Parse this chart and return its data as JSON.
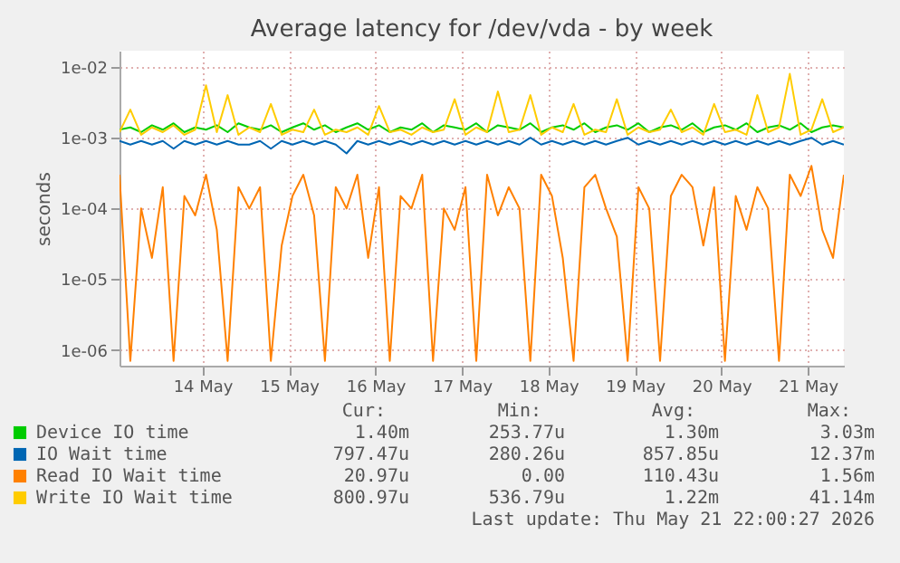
{
  "chart_data": {
    "type": "line",
    "title": "Average latency for /dev/vda - by week",
    "ylabel": "seconds",
    "log": true,
    "grid": true,
    "legend": "bottom left",
    "marker": "none",
    "line_style": "solid",
    "xlim": [
      "2026-05-13T13:00",
      "2026-05-21T22:00"
    ],
    "xticks": [
      {
        "value": "2026-05-14T12:00",
        "label": "14 May"
      },
      {
        "value": "2026-05-15T12:00",
        "label": "15 May"
      },
      {
        "value": "2026-05-16T12:00",
        "label": "16 May"
      },
      {
        "value": "2026-05-17T12:00",
        "label": "17 May"
      },
      {
        "value": "2026-05-18T12:00",
        "label": "18 May"
      },
      {
        "value": "2026-05-19T12:00",
        "label": "19 May"
      },
      {
        "value": "2026-05-20T12:00",
        "label": "20 May"
      },
      {
        "value": "2026-05-21T12:00",
        "label": "21 May"
      }
    ],
    "ylim": [
      6e-07,
      0.017
    ],
    "yticks": [
      {
        "value": 0.01,
        "label": "1e-02"
      },
      {
        "value": 0.001,
        "label": "1e-03"
      },
      {
        "value": 0.0001,
        "label": "1e-04"
      },
      {
        "value": 1e-05,
        "label": "1e-05"
      },
      {
        "value": 1e-06,
        "label": "1e-06"
      }
    ],
    "x": [
      "2026-05-13T13:00",
      "2026-05-13T16:00",
      "2026-05-13T19:00",
      "2026-05-13T22:00",
      "2026-05-14T01:00",
      "2026-05-14T04:00",
      "2026-05-14T07:00",
      "2026-05-14T10:00",
      "2026-05-14T13:00",
      "2026-05-14T16:00",
      "2026-05-14T19:00",
      "2026-05-14T22:00",
      "2026-05-15T01:00",
      "2026-05-15T04:00",
      "2026-05-15T07:00",
      "2026-05-15T10:00",
      "2026-05-15T13:00",
      "2026-05-15T16:00",
      "2026-05-15T19:00",
      "2026-05-15T22:00",
      "2026-05-16T01:00",
      "2026-05-16T04:00",
      "2026-05-16T07:00",
      "2026-05-16T10:00",
      "2026-05-16T13:00",
      "2026-05-16T16:00",
      "2026-05-16T19:00",
      "2026-05-16T22:00",
      "2026-05-17T01:00",
      "2026-05-17T04:00",
      "2026-05-17T07:00",
      "2026-05-17T10:00",
      "2026-05-17T13:00",
      "2026-05-17T16:00",
      "2026-05-17T19:00",
      "2026-05-17T22:00",
      "2026-05-18T01:00",
      "2026-05-18T04:00",
      "2026-05-18T07:00",
      "2026-05-18T10:00",
      "2026-05-18T13:00",
      "2026-05-18T16:00",
      "2026-05-18T19:00",
      "2026-05-18T22:00",
      "2026-05-19T01:00",
      "2026-05-19T04:00",
      "2026-05-19T07:00",
      "2026-05-19T10:00",
      "2026-05-19T13:00",
      "2026-05-19T16:00",
      "2026-05-19T19:00",
      "2026-05-19T22:00",
      "2026-05-20T01:00",
      "2026-05-20T04:00",
      "2026-05-20T07:00",
      "2026-05-20T10:00",
      "2026-05-20T13:00",
      "2026-05-20T16:00",
      "2026-05-20T19:00",
      "2026-05-20T22:00",
      "2026-05-21T01:00",
      "2026-05-21T04:00",
      "2026-05-21T07:00",
      "2026-05-21T10:00",
      "2026-05-21T13:00",
      "2026-05-21T16:00",
      "2026-05-21T19:00",
      "2026-05-21T22:00"
    ],
    "series": [
      {
        "name": "Device IO time",
        "color": "#00cc00",
        "values": [
          0.0013,
          0.0014,
          0.0012,
          0.0015,
          0.0013,
          0.0016,
          0.0012,
          0.0014,
          0.0013,
          0.0015,
          0.0012,
          0.0016,
          0.0014,
          0.0013,
          0.0015,
          0.0012,
          0.0014,
          0.0016,
          0.0013,
          0.0015,
          0.0012,
          0.0014,
          0.0016,
          0.0013,
          0.0015,
          0.0012,
          0.0014,
          0.0013,
          0.0016,
          0.0012,
          0.0015,
          0.0014,
          0.0013,
          0.0016,
          0.0012,
          0.0015,
          0.0014,
          0.0013,
          0.0016,
          0.0012,
          0.0014,
          0.0015,
          0.0013,
          0.0016,
          0.0012,
          0.0014,
          0.0015,
          0.0013,
          0.0016,
          0.0012,
          0.0014,
          0.0015,
          0.0013,
          0.0016,
          0.0012,
          0.0014,
          0.0015,
          0.0013,
          0.0016,
          0.0012,
          0.0014,
          0.0015,
          0.0013,
          0.0016,
          0.0012,
          0.0014,
          0.0015,
          0.0014
        ]
      },
      {
        "name": "IO Wait time",
        "color": "#0066b3",
        "values": [
          0.0009,
          0.0008,
          0.0009,
          0.0008,
          0.0009,
          0.0007,
          0.0009,
          0.0008,
          0.0009,
          0.0008,
          0.0009,
          0.0008,
          0.0008,
          0.0009,
          0.0007,
          0.0009,
          0.0008,
          0.0009,
          0.0008,
          0.0009,
          0.0008,
          0.0006,
          0.0009,
          0.0008,
          0.0009,
          0.0008,
          0.0009,
          0.0008,
          0.0009,
          0.0008,
          0.0009,
          0.0008,
          0.0009,
          0.0008,
          0.0009,
          0.0008,
          0.0009,
          0.0008,
          0.001,
          0.0008,
          0.0009,
          0.0008,
          0.0009,
          0.0008,
          0.0009,
          0.0008,
          0.0009,
          0.001,
          0.0008,
          0.0009,
          0.0008,
          0.0009,
          0.0008,
          0.0009,
          0.0008,
          0.0009,
          0.0008,
          0.0009,
          0.0008,
          0.0009,
          0.0008,
          0.0009,
          0.0008,
          0.0009,
          0.001,
          0.0008,
          0.0009,
          0.0008
        ]
      },
      {
        "name": "Read IO Wait time",
        "color": "#ff8000",
        "values": [
          0.0003,
          7e-07,
          0.0001,
          2e-05,
          0.0002,
          7e-07,
          0.00015,
          8e-05,
          0.0003,
          5e-05,
          7e-07,
          0.0002,
          0.0001,
          0.0002,
          7e-07,
          3e-05,
          0.00015,
          0.0003,
          8e-05,
          7e-07,
          0.0002,
          0.0001,
          0.0003,
          2e-05,
          0.0002,
          7e-07,
          0.00015,
          0.0001,
          0.0003,
          7e-07,
          0.0001,
          5e-05,
          0.0002,
          7e-07,
          0.0003,
          8e-05,
          0.0002,
          0.0001,
          7e-07,
          0.0003,
          0.00015,
          2e-05,
          7e-07,
          0.0002,
          0.0003,
          0.0001,
          4e-05,
          7e-07,
          0.0002,
          0.0001,
          7e-07,
          0.00015,
          0.0003,
          0.0002,
          3e-05,
          0.0002,
          7e-07,
          0.00015,
          5e-05,
          0.0002,
          0.0001,
          7e-07,
          0.0003,
          0.00015,
          0.0004,
          5e-05,
          2e-05,
          0.0003
        ]
      },
      {
        "name": "Write IO Wait time",
        "color": "#ffcc00",
        "values": [
          0.0012,
          0.0025,
          0.0011,
          0.0014,
          0.0012,
          0.0015,
          0.0011,
          0.0013,
          0.0055,
          0.0012,
          0.004,
          0.0011,
          0.0014,
          0.0012,
          0.003,
          0.0011,
          0.0013,
          0.0012,
          0.0025,
          0.0011,
          0.0013,
          0.0012,
          0.0014,
          0.0011,
          0.0028,
          0.0012,
          0.0013,
          0.0011,
          0.0014,
          0.0012,
          0.0013,
          0.0035,
          0.0011,
          0.0014,
          0.0012,
          0.0045,
          0.0012,
          0.0013,
          0.004,
          0.0011,
          0.0014,
          0.0012,
          0.003,
          0.0011,
          0.0013,
          0.0012,
          0.0035,
          0.0011,
          0.0014,
          0.0012,
          0.0013,
          0.0025,
          0.0012,
          0.0014,
          0.0011,
          0.003,
          0.0012,
          0.0013,
          0.0011,
          0.004,
          0.0012,
          0.0014,
          0.008,
          0.0011,
          0.0013,
          0.0035,
          0.0012,
          0.0014
        ]
      }
    ],
    "annotations": [
      "Cur:",
      "Min:",
      "Avg:",
      "Max:",
      "1.40m",
      "253.77u",
      "1.30m",
      "3.03m",
      "797.47u",
      "280.26u",
      "857.85u",
      "12.37m",
      "20.97u",
      "0.00",
      "110.43u",
      "1.56m",
      "800.97u",
      "536.79u",
      "1.22m",
      "41.14m",
      "Last update: Thu May 21 22:00:27 2026"
    ]
  }
}
